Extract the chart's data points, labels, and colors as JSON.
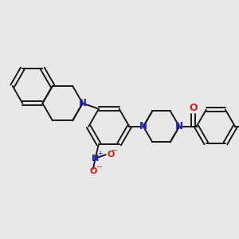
{
  "bg_color": "#e8e8e8",
  "bond_color": "#1a1a1a",
  "N_color": "#2020cc",
  "O_color": "#cc2020",
  "lw": 1.4,
  "dbg": 0.03,
  "xlim": [
    -0.2,
    3.2
  ],
  "ylim": [
    0.5,
    2.9
  ]
}
